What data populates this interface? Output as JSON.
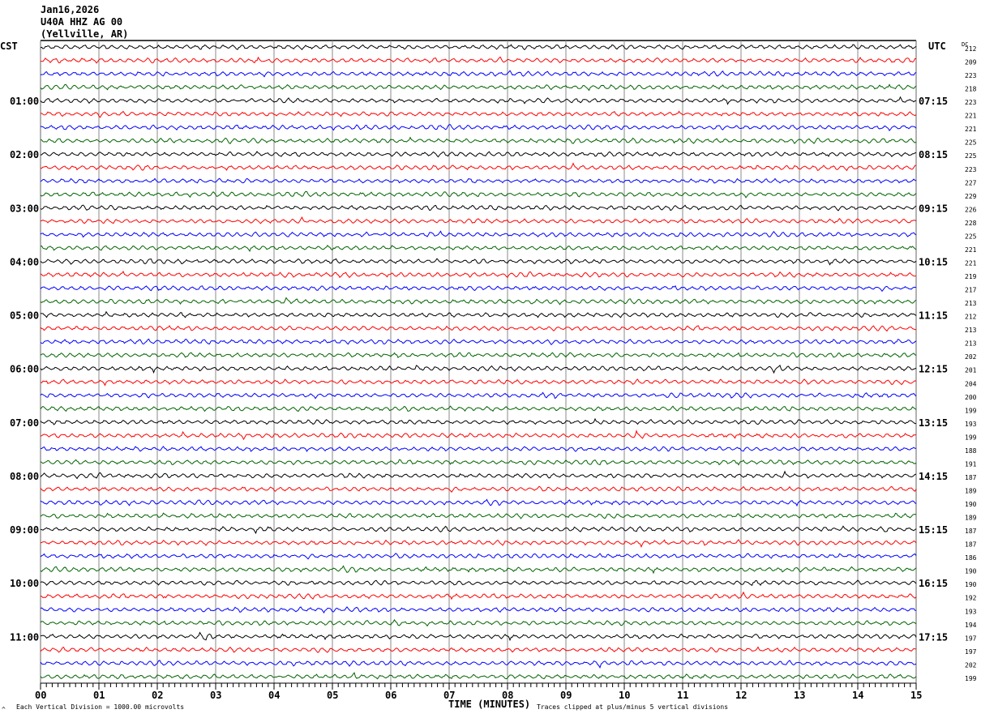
{
  "header": {
    "date": "Jan16,2026",
    "station": "U40A HHZ AG 00",
    "location": "(Yellville, AR)"
  },
  "left_axis_title": "CST",
  "right_axis_title": "UTC",
  "dc_title": "DC",
  "footer": {
    "scale_note": "Each Vertical Division = 1000.00 microvolts",
    "xlabel": "TIME (MINUTES)",
    "clip_note": "Traces clipped at plus/minus 5 vertical divisions",
    "corner_mark": "^"
  },
  "chart_data": {
    "type": "line",
    "subtype": "helicorder",
    "xlabel": "TIME (MINUTES)",
    "xlim": [
      0,
      15
    ],
    "x_ticks": [
      "00",
      "01",
      "02",
      "03",
      "04",
      "05",
      "06",
      "07",
      "08",
      "09",
      "10",
      "11",
      "12",
      "13",
      "14",
      "15"
    ],
    "minor_ticks_per_minute": 10,
    "grid": "vertical lines every minute",
    "trace_colors": [
      "#000000",
      "#ff0000",
      "#0000ff",
      "#006400"
    ],
    "rows_per_hour": 4,
    "cst_hour_labels": [
      "",
      "01:00",
      "02:00",
      "03:00",
      "04:00",
      "05:00",
      "06:00",
      "07:00",
      "08:00",
      "09:00",
      "10:00",
      "11:00"
    ],
    "utc_hour_labels": [
      "",
      "07:15",
      "08:15",
      "09:15",
      "10:15",
      "11:15",
      "12:15",
      "13:15",
      "14:15",
      "15:15",
      "16:15",
      "17:15"
    ],
    "dc_values": [
      212,
      209,
      223,
      218,
      223,
      221,
      221,
      225,
      225,
      223,
      227,
      229,
      226,
      228,
      225,
      221,
      221,
      219,
      217,
      213,
      212,
      213,
      213,
      202,
      201,
      204,
      200,
      199,
      193,
      199,
      188,
      191,
      187,
      189,
      190,
      189,
      187,
      187,
      186,
      190,
      190,
      192,
      193,
      194,
      197,
      197,
      202,
      199
    ]
  }
}
